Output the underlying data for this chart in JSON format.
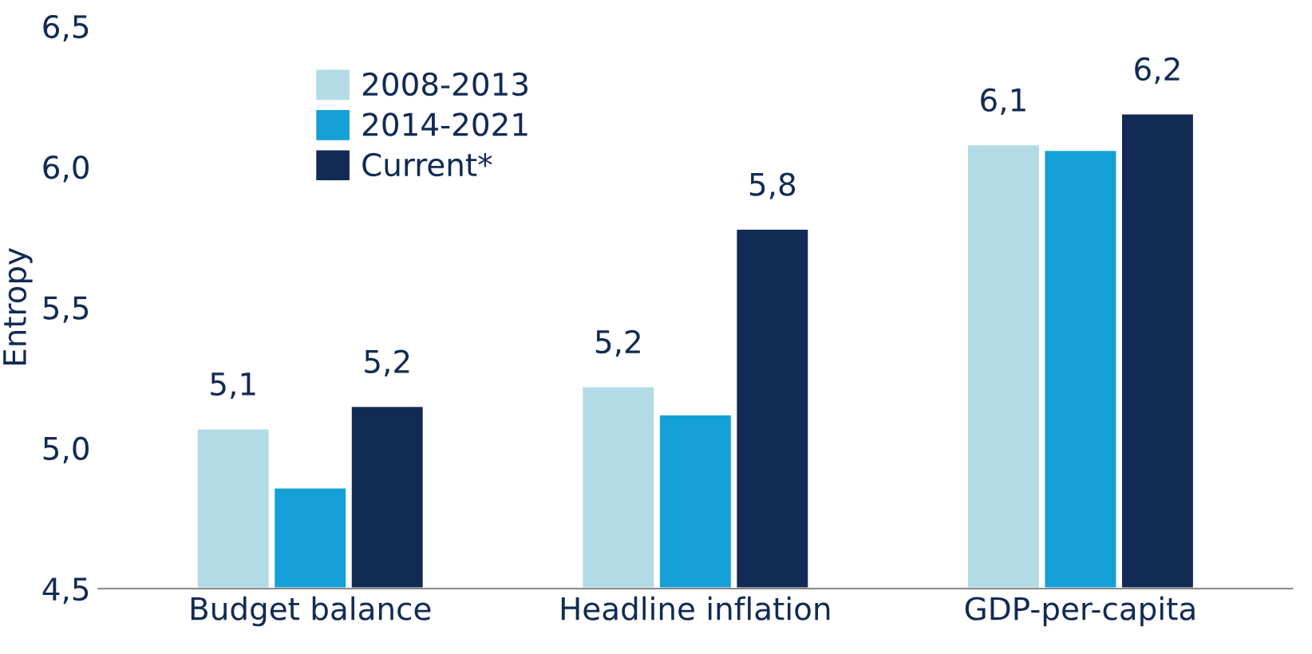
{
  "chart_data": {
    "type": "bar",
    "ylabel": "Entropy",
    "categories": [
      "Budget balance",
      "Headline inflation",
      "GDP-per-capita"
    ],
    "series": [
      {
        "name": "2008-2013",
        "color": "#b3dbe6",
        "values": [
          5.07,
          5.22,
          6.08
        ],
        "value_labels": [
          "5,1",
          "5,2",
          "6,1"
        ]
      },
      {
        "name": "2014-2021",
        "color": "#14a0d6",
        "values": [
          4.86,
          5.12,
          6.06
        ],
        "value_labels": [
          null,
          null,
          null
        ]
      },
      {
        "name": "Current*",
        "color": "#122b54",
        "values": [
          5.15,
          5.78,
          6.19
        ],
        "value_labels": [
          "5,2",
          "5,8",
          "6,2"
        ]
      }
    ],
    "ylim": [
      4.5,
      6.5
    ],
    "yticks": [
      {
        "value": 4.5,
        "label": "4,5"
      },
      {
        "value": 5.0,
        "label": "5,0"
      },
      {
        "value": 5.5,
        "label": "5,5"
      },
      {
        "value": 6.0,
        "label": "6,0"
      },
      {
        "value": 6.5,
        "label": "6,5"
      }
    ],
    "grid": false,
    "legend": "top left"
  }
}
